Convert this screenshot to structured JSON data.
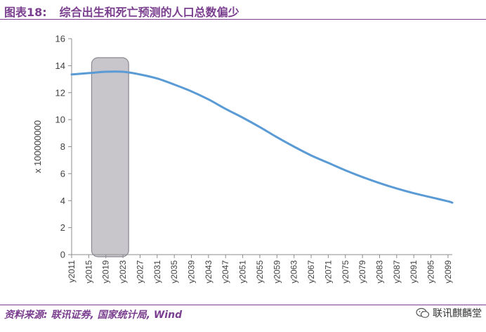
{
  "header": {
    "figure_label": "图表18:",
    "title": "综合出生和死亡预测的人口总数偏少"
  },
  "footer": {
    "source": "资料来源: 联讯证券, 国家统计局, Wind",
    "watermark": "联讯麒麟堂"
  },
  "icons": {
    "watermark": "wechat-icon"
  },
  "colors": {
    "accent": "#7b3f8f",
    "line": "#5b9bd5",
    "highlight": "#c8c6cb"
  },
  "chart_data": {
    "type": "line",
    "title": "",
    "xlabel": "",
    "ylabel": "x 100000000",
    "ylim": [
      0,
      16
    ],
    "yticks": [
      0,
      2,
      4,
      6,
      8,
      10,
      12,
      14,
      16
    ],
    "xtick_labels": [
      "y2011",
      "y2015",
      "y2019",
      "y2023",
      "y2027",
      "y2031",
      "y2035",
      "y2039",
      "y2043",
      "y2047",
      "y2051",
      "y2055",
      "y2059",
      "y2063",
      "y2067",
      "y2071",
      "y2075",
      "y2079",
      "y2083",
      "y2087",
      "y2091",
      "y2095",
      "y2099"
    ],
    "highlight_range": [
      "y2016",
      "y2024"
    ],
    "grid": false,
    "legend": "none",
    "series": [
      {
        "x": [
          "y2011",
          "y2015",
          "y2019",
          "y2023",
          "y2027",
          "y2031",
          "y2035",
          "y2039",
          "y2043",
          "y2047",
          "y2051",
          "y2055",
          "y2059",
          "y2063",
          "y2067",
          "y2071",
          "y2075",
          "y2079",
          "y2083",
          "y2087",
          "y2091",
          "y2095",
          "y2099",
          "y2100"
        ],
        "values": [
          13.35,
          13.45,
          13.55,
          13.55,
          13.35,
          13.05,
          12.6,
          12.1,
          11.5,
          10.8,
          10.15,
          9.45,
          8.7,
          8.0,
          7.35,
          6.8,
          6.25,
          5.75,
          5.3,
          4.9,
          4.55,
          4.25,
          3.95,
          3.85
        ]
      }
    ]
  }
}
